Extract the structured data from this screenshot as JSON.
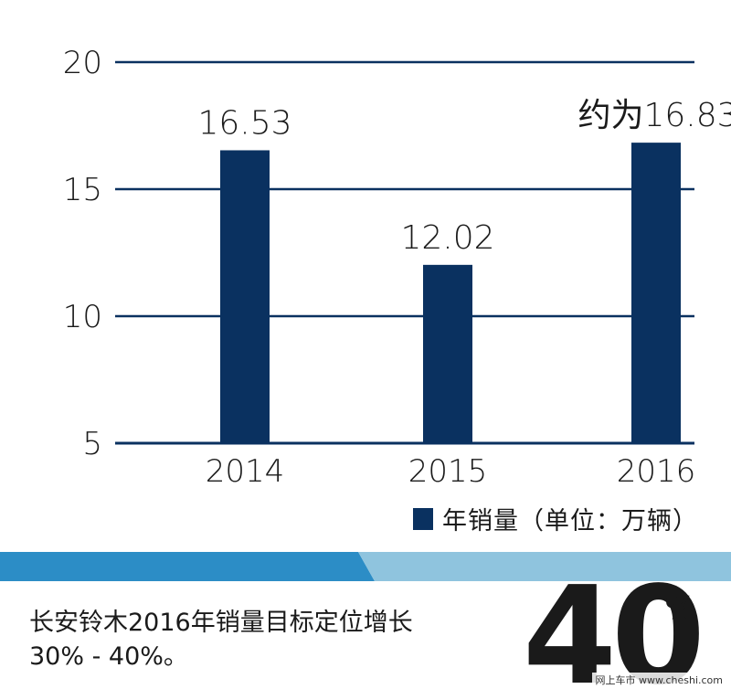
{
  "chart_data": {
    "type": "bar",
    "categories": [
      "2014",
      "2015",
      "2016"
    ],
    "values": [
      16.53,
      12.02,
      16.83
    ],
    "data_labels": [
      "16.53",
      "12.02",
      "约为16.83"
    ],
    "ylim": [
      5,
      20
    ],
    "yticks": [
      5,
      10,
      15,
      20
    ],
    "grid": true,
    "legend": "bottom-right",
    "bar_color": "#0a3160"
  },
  "legend": {
    "label": "年销量（单位：万辆）"
  },
  "colors": {
    "band_dark": "#2c8dc6",
    "band_light": "#8fc4de"
  },
  "footer": {
    "text": "长安铃木2016年销量目标定位增长30% - 40%。",
    "big_number": "40",
    "percent_sign": "%"
  },
  "watermark": {
    "text": "网上车市 www.cheshi.com"
  }
}
